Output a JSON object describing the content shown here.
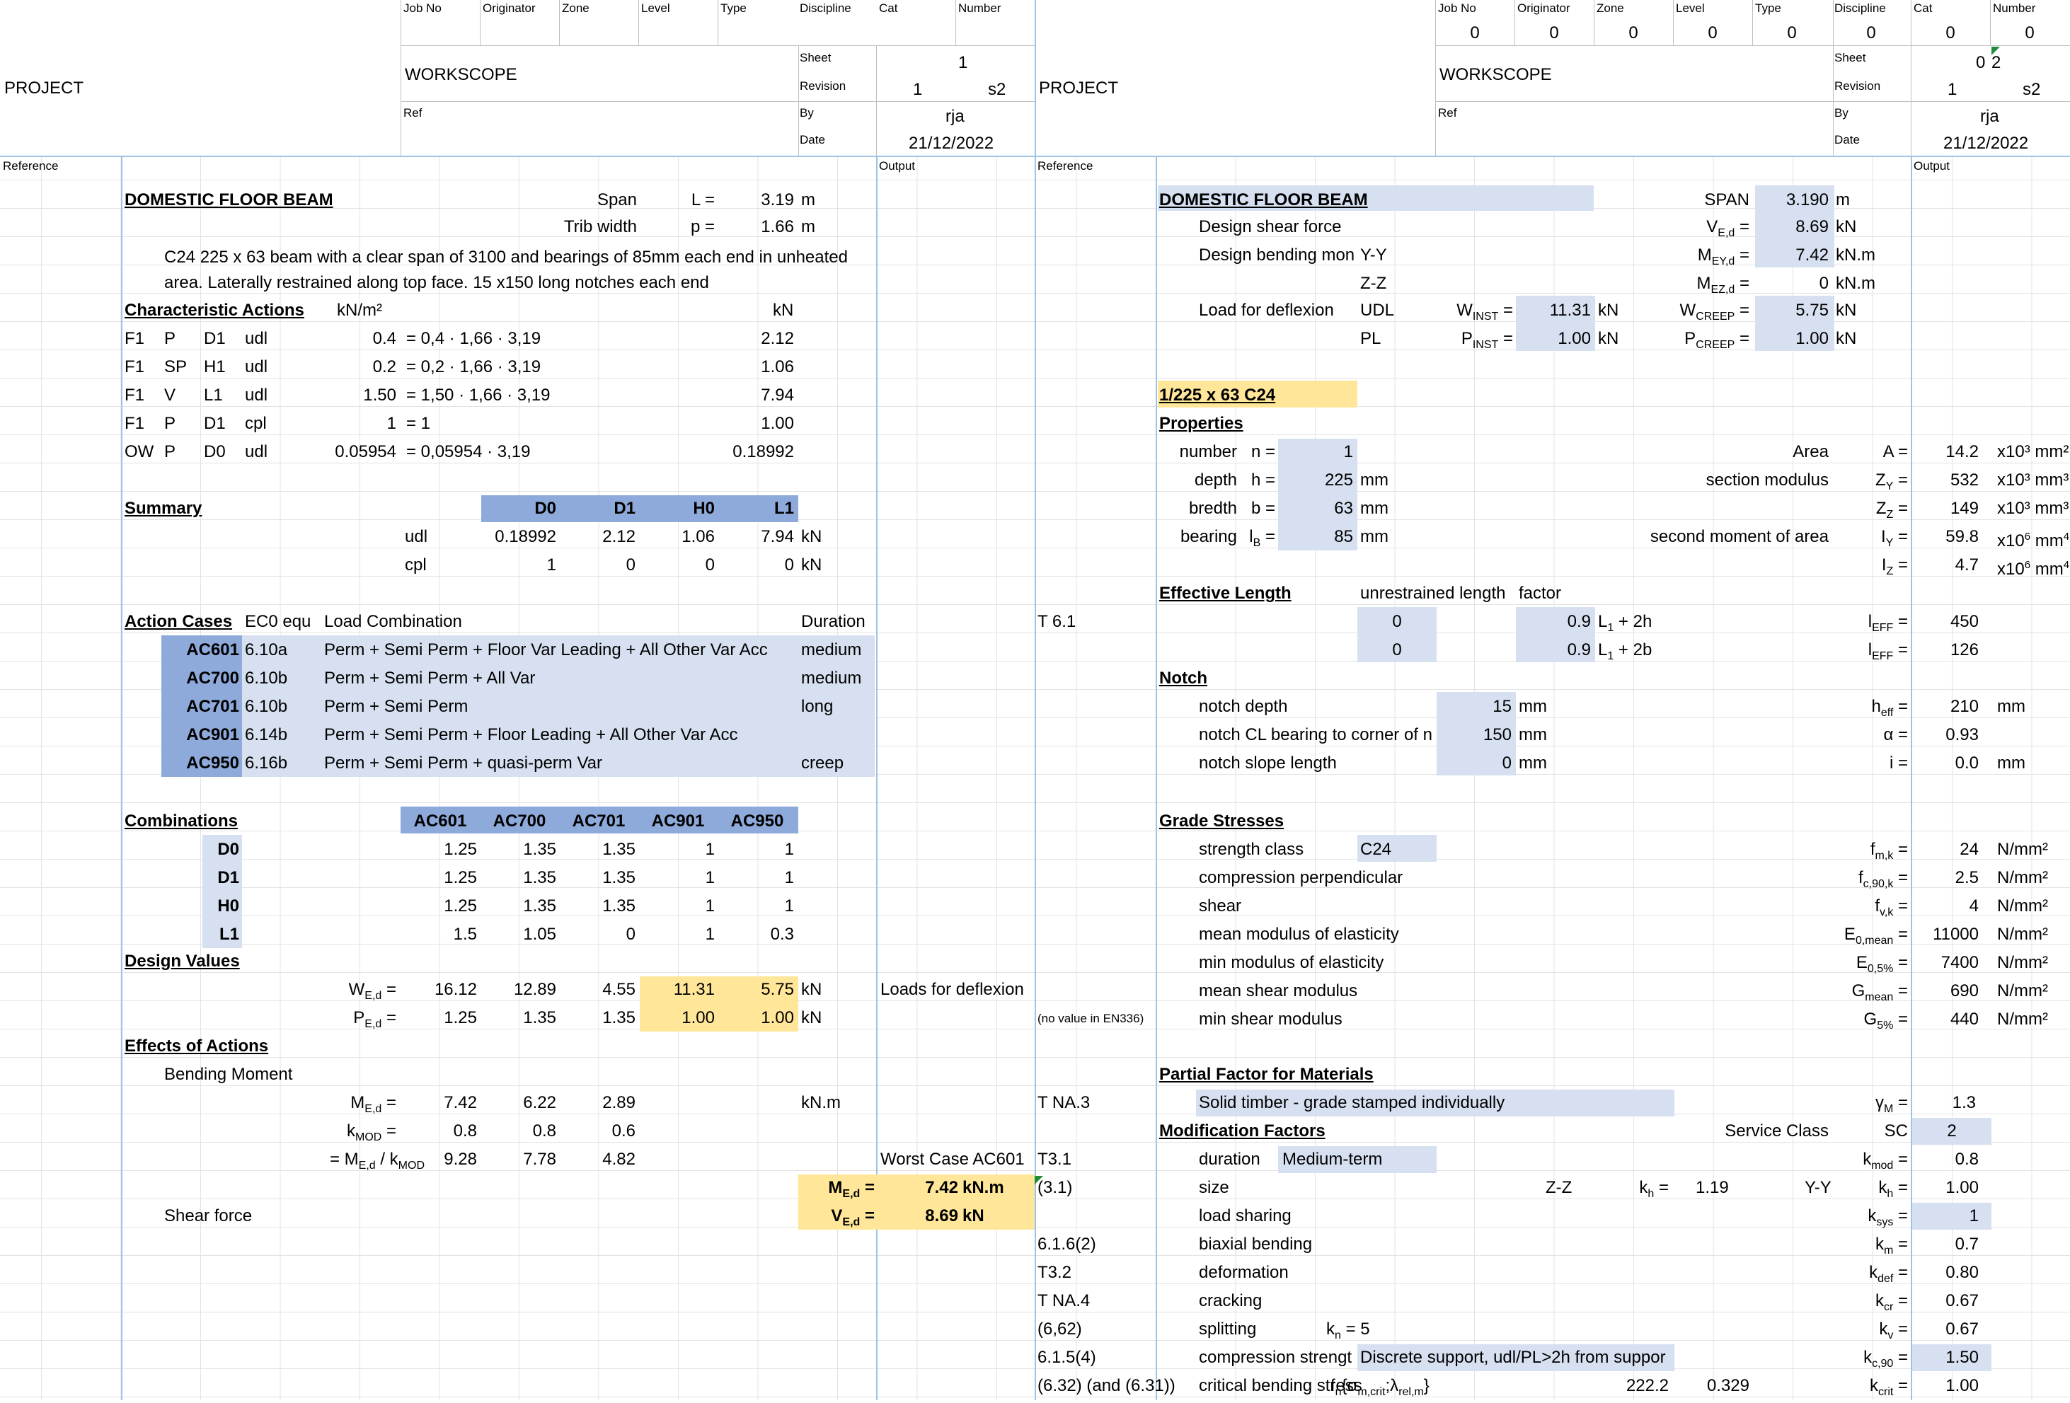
{
  "left": {
    "header": {
      "labels": [
        "Job No",
        "Originator",
        "Zone",
        "Level",
        "Type",
        "Discipline",
        "Cat",
        "Number"
      ],
      "values": [
        "",
        "",
        "",
        "",
        "",
        "",
        "",
        ""
      ],
      "project_label": "PROJECT",
      "workscope_label": "WORKSCOPE",
      "ref_label": "Ref",
      "sheet_label": "Sheet",
      "sheet_value": "1",
      "revision_label": "Revision",
      "revision_value": "1",
      "revision_s": "s2",
      "by_label": "By",
      "by_value": "rja",
      "date_label": "Date",
      "date_value": "21/12/2022",
      "reference_label": "Reference",
      "output_label": "Output"
    },
    "title": "DOMESTIC FLOOR BEAM",
    "span_label": "Span",
    "span_sym": "L =",
    "span_val": "3.19",
    "span_unit": "m",
    "trib_label": "Trib width",
    "trib_sym": "p =",
    "trib_val": "1.66",
    "trib_unit": "m",
    "description": "C24 225 x 63 beam with a clear span of 3100 and bearings of 85mm each end in unheated area.  Laterally restrained along top face. 15 x150 long notches each end",
    "char_actions": {
      "heading": "Characteristic Actions",
      "unit1": "kN/m²",
      "unit2": "kN",
      "rows": [
        {
          "a": "F1",
          "b": "P",
          "c": "D1",
          "d": "udl",
          "v": "0.4",
          "f": "= 0,4 · 1,66 · 3,19",
          "r": "2.12"
        },
        {
          "a": "F1",
          "b": "SP",
          "c": "H1",
          "d": "udl",
          "v": "0.2",
          "f": "= 0,2 · 1,66 · 3,19",
          "r": "1.06"
        },
        {
          "a": "F1",
          "b": "V",
          "c": "L1",
          "d": "udl",
          "v": "1.50",
          "f": "= 1,50 · 1,66 · 3,19",
          "r": "7.94"
        },
        {
          "a": "F1",
          "b": "P",
          "c": "D1",
          "d": "cpl",
          "v": "1",
          "f": "= 1",
          "r": "1.00"
        },
        {
          "a": "OW",
          "b": "P",
          "c": "D0",
          "d": "udl",
          "v": "0.05954",
          "f": "= 0,05954 · 3,19",
          "r": "0.18992"
        }
      ]
    },
    "summary": {
      "heading": "Summary",
      "cols": [
        "D0",
        "D1",
        "H0",
        "L1"
      ],
      "rows": [
        {
          "label": "udl",
          "vals": [
            "0.18992",
            "2.12",
            "1.06",
            "7.94"
          ],
          "unit": "kN"
        },
        {
          "label": "cpl",
          "vals": [
            "1",
            "0",
            "0",
            "0"
          ],
          "unit": "kN"
        }
      ]
    },
    "action_cases": {
      "heading": "Action Cases",
      "col_eq": "EC0 equ",
      "col_lc": "Load Combination",
      "col_dur": "Duration",
      "rows": [
        {
          "id": "AC601",
          "eq": "6.10a",
          "lc": "Perm + Semi Perm + Floor Var Leading + All Other Var Acc",
          "dur": "medium"
        },
        {
          "id": "AC700",
          "eq": "6.10b",
          "lc": "Perm + Semi Perm + All  Var",
          "dur": "medium"
        },
        {
          "id": "AC701",
          "eq": "6.10b",
          "lc": "Perm + Semi Perm",
          "dur": "long"
        },
        {
          "id": "AC901",
          "eq": "6.14b",
          "lc": "Perm + Semi Perm + Floor Leading + All Other Var Acc",
          "dur": ""
        },
        {
          "id": "AC950",
          "eq": "6.16b",
          "lc": "Perm + Semi Perm + quasi-perm Var",
          "dur": "creep"
        }
      ]
    },
    "combinations": {
      "heading": "Combinations",
      "cols": [
        "AC601",
        "AC700",
        "AC701",
        "AC901",
        "AC950"
      ],
      "rows": [
        {
          "id": "D0",
          "vals": [
            "1.25",
            "1.35",
            "1.35",
            "1",
            "1"
          ]
        },
        {
          "id": "D1",
          "vals": [
            "1.25",
            "1.35",
            "1.35",
            "1",
            "1"
          ]
        },
        {
          "id": "H0",
          "vals": [
            "1.25",
            "1.35",
            "1.35",
            "1",
            "1"
          ]
        },
        {
          "id": "L1",
          "vals": [
            "1.5",
            "1.05",
            "0",
            "1",
            "0.3"
          ]
        }
      ]
    },
    "design_values": {
      "heading": "Design Values",
      "w_vals": [
        "16.12",
        "12.89",
        "4.55",
        "11.31",
        "5.75"
      ],
      "w_unit": "kN",
      "p_vals": [
        "1.25",
        "1.35",
        "1.35",
        "1.00",
        "1.00"
      ],
      "p_unit": "kN",
      "deflex_note": "Loads for deflexion"
    },
    "effects": {
      "heading": "Effects of Actions",
      "bending_label": "Bending Moment",
      "med_vals": [
        "7.42",
        "6.22",
        "2.89"
      ],
      "med_unit": "kN.m",
      "kmod_vals": [
        "0.8",
        "0.8",
        "0.6"
      ],
      "ratio_label_pre": "= M",
      "ratio_label_post": " / k",
      "ratio_vals": [
        "9.28",
        "7.78",
        "4.82"
      ],
      "worst_case": "Worst Case AC601",
      "med_out": "7.42",
      "med_out_unit": "kN.m",
      "shear_label": "Shear force",
      "ved_out": "8.69",
      "ved_out_unit": "kN"
    }
  },
  "right": {
    "header": {
      "labels": [
        "Job No",
        "Originator",
        "Zone",
        "Level",
        "Type",
        "Discipline",
        "Cat",
        "Number"
      ],
      "values": [
        "0",
        "0",
        "0",
        "0",
        "0",
        "0",
        "0",
        "0"
      ],
      "project_label": "PROJECT",
      "workscope_label": "WORKSCOPE",
      "ref_label": "Ref",
      "sheet_label": "Sheet",
      "sheet_value_a": "0",
      "sheet_value_b": "2",
      "revision_label": "Revision",
      "revision_value": "1",
      "revision_s": "s2",
      "by_label": "By",
      "by_value": "rja",
      "date_label": "Date",
      "date_value": "21/12/2022",
      "reference_label": "Reference",
      "output_label": "Output"
    },
    "title": "DOMESTIC FLOOR BEAM",
    "span_label": "SPAN",
    "span_sym": "L =",
    "span_val": "3.190",
    "span_unit": "m",
    "shear_label": "Design shear force",
    "shear_val": "8.69",
    "shear_unit": "kN",
    "bending_label": "Design bending mon",
    "bending_axis_y": "Y-Y",
    "bending_y_val": "7.42",
    "bending_unit": "kN.m",
    "bending_axis_z": "Z-Z",
    "bending_z_val": "0",
    "deflex_label": "Load for deflexion",
    "deflex_udl": "UDL",
    "deflex_pl": "PL",
    "w_inst": "11.31",
    "p_inst": "1.00",
    "w_creep": "5.75",
    "p_creep": "1.00",
    "kN": "kN",
    "section": "1/225 x 63 C24",
    "properties": {
      "heading": "Properties",
      "rows": [
        {
          "label": "number",
          "sym": "n =",
          "val": "1",
          "unit": "",
          "rlabel": "Area",
          "rsym": "A =",
          "rval": "14.2",
          "runit": "x10³ mm²"
        },
        {
          "label": "depth",
          "sym": "h =",
          "val": "225",
          "unit": "mm",
          "rlabel": "section modulus",
          "rsym": "Z",
          "rval": "532",
          "runit": "x10³ mm³"
        },
        {
          "label": "bredth",
          "sym": "b =",
          "val": "63",
          "unit": "mm",
          "rlabel": "",
          "rsym": "Z",
          "rval": "149",
          "runit": "x10³ mm³"
        },
        {
          "label": "bearing",
          "sym": "l",
          "val": "85",
          "unit": "mm",
          "rlabel": "second moment of area",
          "rsym": "I",
          "rval": "59.8",
          "runit": "x10"
        },
        {
          "label": "",
          "sym": "",
          "val": "",
          "unit": "",
          "rlabel": "",
          "rsym": "I",
          "rval": "4.7",
          "runit": "x10"
        }
      ]
    },
    "eff_length": {
      "heading": "Effective Length",
      "col1": "unrestrained length",
      "col2": "factor",
      "ref": "T 6.1",
      "rows": [
        {
          "len": "0",
          "factor": "0.9",
          "expr": "L",
          "expr_tail": " + 2h",
          "val": "450"
        },
        {
          "len": "0",
          "factor": "0.9",
          "expr": "L",
          "expr_tail": " + 2b",
          "val": "126"
        }
      ]
    },
    "notch": {
      "heading": "Notch",
      "rows": [
        {
          "label": "notch depth",
          "val": "15",
          "unit": "mm",
          "sym": "h",
          "rval": "210",
          "runit": "mm"
        },
        {
          "label": "notch CL bearing to corner of n",
          "val": "150",
          "unit": "mm",
          "sym": "α =",
          "rval": "0.93",
          "runit": ""
        },
        {
          "label": "notch slope length",
          "val": "0",
          "unit": "mm",
          "sym": "i =",
          "rval": "0.0",
          "runit": "mm"
        }
      ]
    },
    "grade": {
      "heading": "Grade Stresses",
      "rows": [
        {
          "label": "strength class",
          "box": "C24",
          "sym": "f",
          "val": "24",
          "unit": "N/mm²"
        },
        {
          "label": "compression perpendicular",
          "box": "",
          "sym": "f",
          "val": "2.5",
          "unit": "N/mm²"
        },
        {
          "label": "shear",
          "box": "",
          "sym": "f",
          "val": "4",
          "unit": "N/mm²"
        },
        {
          "label": "mean modulus of elasticity",
          "box": "",
          "sym": "E",
          "val": "11000",
          "unit": "N/mm²"
        },
        {
          "label": "min modulus of elasticity",
          "box": "",
          "sym": "E",
          "val": "7400",
          "unit": "N/mm²"
        },
        {
          "label": "mean shear modulus",
          "box": "",
          "sym": "G",
          "val": "690",
          "unit": "N/mm²"
        },
        {
          "label": "min shear modulus",
          "box": "",
          "sym": "G",
          "val": "440",
          "unit": "N/mm²"
        }
      ],
      "no_value_note": "(no value in EN336)"
    },
    "partial": {
      "heading": "Partial Factor for Materials",
      "ref": "T NA.3",
      "desc": "Solid timber - grade stamped individually",
      "val": "1.3"
    },
    "mod": {
      "heading": "Modification Factors",
      "service_label": "Service Class",
      "sc_label": "SC",
      "sc_val": "2",
      "rows": [
        {
          "ref": "T3.1",
          "label": "duration",
          "extra": "Medium-term",
          "sym": "k",
          "val": "0.8"
        },
        {
          "ref": "(3.1)",
          "label": "size",
          "extra": "",
          "sym": "k",
          "val": "1.00"
        },
        {
          "ref": "",
          "label": "load sharing",
          "extra": "",
          "sym": "k",
          "val": "1"
        },
        {
          "ref": "6.1.6(2)",
          "label": "biaxial bending",
          "extra": "",
          "sym": "k",
          "val": "0.7"
        },
        {
          "ref": "T3.2",
          "label": "deformation",
          "extra": "",
          "sym": "k",
          "val": "0.80"
        },
        {
          "ref": "T NA.4",
          "label": "cracking",
          "extra": "",
          "sym": "k",
          "val": "0.67"
        },
        {
          "ref": "(6,62)",
          "label": "splitting",
          "extra": "",
          "sym": "k",
          "val": "0.67"
        },
        {
          "ref": "6.1.5(4)",
          "label": "compression strengt",
          "extra": "Discrete support, udl/PL>2h from suppor",
          "sym": "k",
          "val": "1.50"
        },
        {
          "ref": "(6.32) (and (6.31))",
          "label": "critical bending stress",
          "extra": "",
          "sym": "k",
          "val": "1.00"
        }
      ],
      "size_zz": "Z-Z",
      "size_kh": "1.19",
      "size_yy": "Y-Y",
      "kn_label": "k",
      "kn_val": "5",
      "crit_a": "222.2",
      "crit_b": "0.329"
    }
  }
}
